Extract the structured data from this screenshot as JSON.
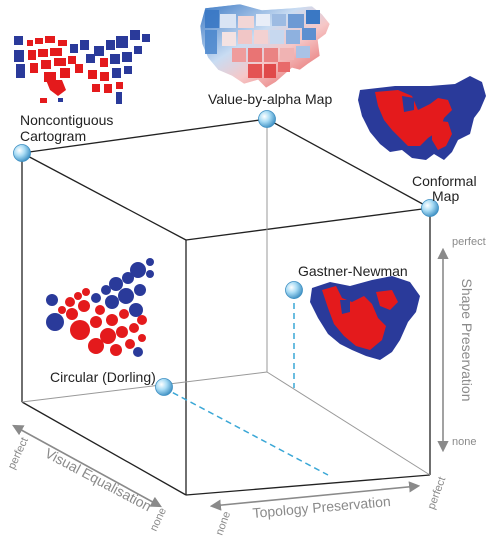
{
  "labels": {
    "noncontiguous": [
      "Noncontiguous",
      "Cartogram"
    ],
    "value_by_alpha": "Value-by-alpha Map",
    "conformal": [
      "Conformal",
      "Map"
    ],
    "gastner": "Gastner-Newman",
    "circular": "Circular (Dorling)"
  },
  "axes": {
    "shape": {
      "title": "Shape Preservation",
      "max": "perfect",
      "min": "none"
    },
    "visual": {
      "title": "Visual Equalisation",
      "max": "perfect",
      "min": "none"
    },
    "topology": {
      "title": "Topology Preservation",
      "min": "none",
      "max": "perfect"
    }
  },
  "colors": {
    "red": "#e41a1c",
    "blue": "#2a3a9a",
    "node": "#6cb8e0",
    "projection": "#3aa7d6",
    "axis": "#8a8a8a",
    "text": "#222222"
  }
}
